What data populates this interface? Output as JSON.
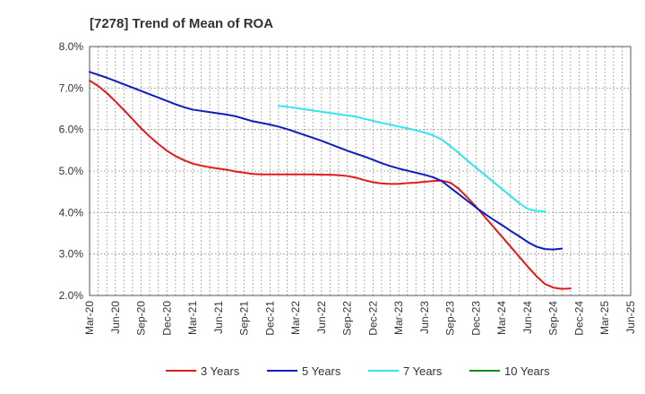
{
  "chart_data": {
    "type": "line",
    "title": "[7278]  Trend of Mean of ROA",
    "xlabel": "",
    "ylabel": "",
    "ylim": [
      2.0,
      8.0
    ],
    "y_ticks": [
      "2.0%",
      "3.0%",
      "4.0%",
      "5.0%",
      "6.0%",
      "7.0%",
      "8.0%"
    ],
    "y_tick_values": [
      2.0,
      3.0,
      4.0,
      5.0,
      6.0,
      7.0,
      8.0
    ],
    "x_ticks": [
      "Mar-20",
      "Jun-20",
      "Sep-20",
      "Dec-20",
      "Mar-21",
      "Jun-21",
      "Sep-21",
      "Dec-21",
      "Mar-22",
      "Jun-22",
      "Sep-22",
      "Dec-22",
      "Mar-23",
      "Jun-23",
      "Sep-23",
      "Dec-23",
      "Mar-24",
      "Jun-24",
      "Sep-24",
      "Dec-24",
      "Mar-25",
      "Jun-25"
    ],
    "grid": true,
    "legend_position": "bottom",
    "series": [
      {
        "name": "3 Years",
        "color": "#e31a1c",
        "start_index": 0,
        "values": [
          7.18,
          7.05,
          6.88,
          6.68,
          6.47,
          6.25,
          6.03,
          5.83,
          5.65,
          5.49,
          5.36,
          5.26,
          5.18,
          5.13,
          5.09,
          5.06,
          5.03,
          4.99,
          4.96,
          4.93,
          4.92,
          4.92,
          4.92,
          4.92,
          4.92,
          4.92,
          4.92,
          4.91,
          4.91,
          4.9,
          4.88,
          4.84,
          4.78,
          4.73,
          4.7,
          4.69,
          4.69,
          4.71,
          4.72,
          4.74,
          4.76,
          4.77,
          4.72,
          4.57,
          4.36,
          4.14,
          3.9,
          3.66,
          3.42,
          3.18,
          2.94,
          2.7,
          2.47,
          2.28,
          2.19,
          2.16,
          2.17
        ]
      },
      {
        "name": "5 Years",
        "color": "#0a1ebe",
        "start_index": 0,
        "values": [
          7.39,
          7.32,
          7.25,
          7.17,
          7.09,
          7.01,
          6.93,
          6.85,
          6.77,
          6.69,
          6.61,
          6.54,
          6.48,
          6.45,
          6.42,
          6.39,
          6.36,
          6.32,
          6.26,
          6.2,
          6.16,
          6.12,
          6.07,
          6.01,
          5.94,
          5.87,
          5.8,
          5.73,
          5.65,
          5.57,
          5.49,
          5.42,
          5.35,
          5.27,
          5.19,
          5.12,
          5.06,
          5.01,
          4.96,
          4.91,
          4.85,
          4.76,
          4.6,
          4.44,
          4.28,
          4.12,
          3.97,
          3.83,
          3.7,
          3.56,
          3.43,
          3.29,
          3.18,
          3.12,
          3.11,
          3.13
        ]
      },
      {
        "name": "7 Years",
        "color": "#33e5ee",
        "start_index": 22,
        "values": [
          6.57,
          6.55,
          6.52,
          6.49,
          6.46,
          6.43,
          6.4,
          6.37,
          6.34,
          6.31,
          6.26,
          6.21,
          6.16,
          6.12,
          6.07,
          6.03,
          5.98,
          5.93,
          5.86,
          5.76,
          5.6,
          5.43,
          5.25,
          5.08,
          4.91,
          4.74,
          4.57,
          4.4,
          4.23,
          4.09,
          4.04,
          4.03
        ]
      },
      {
        "name": "10 Years",
        "color": "#1a8a1a",
        "start_index": 0,
        "values": []
      }
    ]
  }
}
